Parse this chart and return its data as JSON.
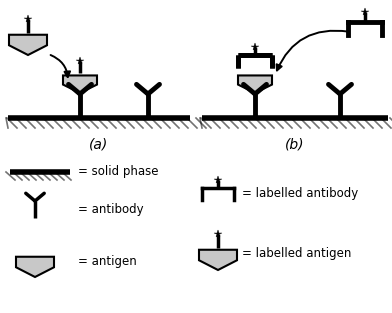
{
  "bg_color": "#ffffff",
  "line_color": "#000000",
  "gray_color": "#c8c8c8",
  "thick_lw": 3.5,
  "med_lw": 2.5,
  "thin_lw": 1.2,
  "label_a": "(a)",
  "label_b": "(b)",
  "legend_solid_phase": "= solid phase",
  "legend_antibody": "= antibody",
  "legend_antigen": "= antigen",
  "legend_lab_antibody": "= labelled antibody",
  "legend_lab_antigen": "= labelled antigen",
  "figw": 3.92,
  "figh": 3.13,
  "dpi": 100
}
